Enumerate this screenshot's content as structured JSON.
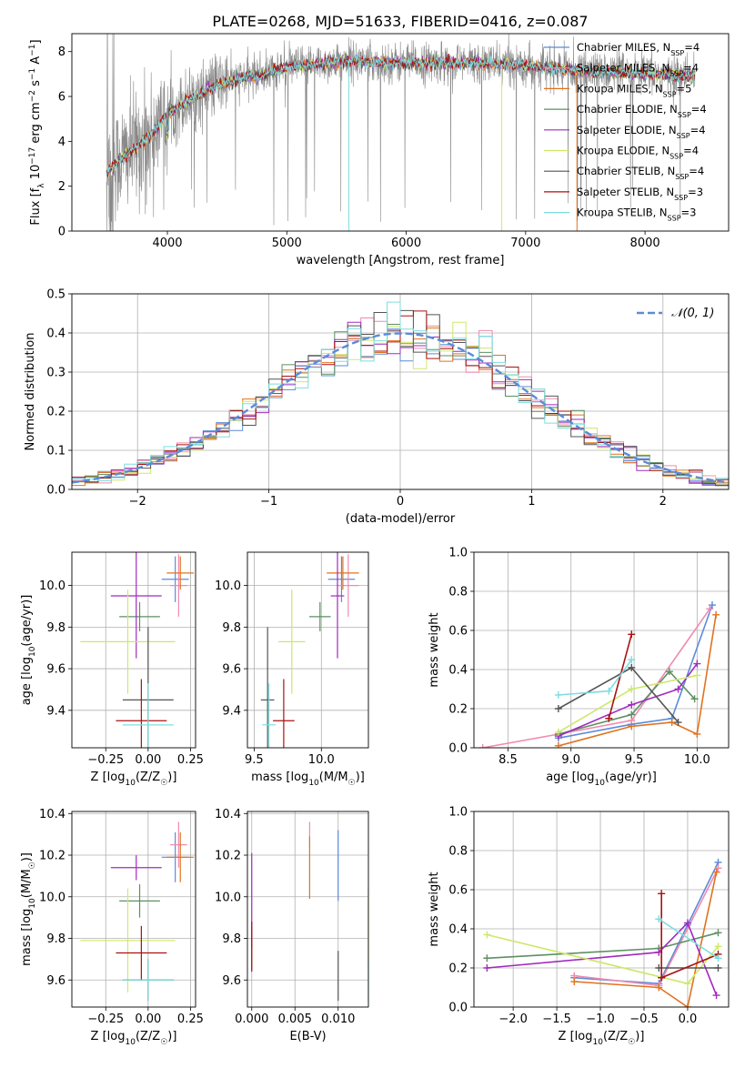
{
  "figure_title": "PLATE=0268, MJD=51633, FIBERID=0416, z=0.087",
  "colors": {
    "chabrier_miles": "#5b8bd9",
    "salpeter_miles": "#f08ab0",
    "kroupa_miles": "#e0731f",
    "chabrier_elodie": "#5e8f62",
    "salpeter_elodie": "#a02bbd",
    "kroupa_elodie": "#cde86a",
    "chabrier_stelib": "#555555",
    "salpeter_stelib": "#aa1111",
    "kroupa_stelib": "#7fdde0",
    "data": "#888888",
    "normal": "#5b8bd9"
  },
  "chart_data": [
    {
      "id": "spectrum",
      "type": "line",
      "xlabel": "wavelength [Angstrom, rest frame]",
      "ylabel": "Flux [f_λ 10^-17 erg cm^-2 s^-1 A^-1]",
      "xlim": [
        3200,
        8700
      ],
      "ylim": [
        0,
        8.8
      ],
      "xticks": [
        4000,
        5000,
        6000,
        7000,
        8000
      ],
      "yticks": [
        0,
        2,
        4,
        6,
        8
      ],
      "grid": false,
      "legend_position": "lower-right",
      "legend": [
        "Chabrier MILES, N_SSP=4",
        "Salpeter MILES, N_SSP=4",
        "Kroupa MILES, N_SSP=5",
        "Chabrier ELODIE, N_SSP=4",
        "Salpeter ELODIE, N_SSP=4",
        "Kroupa ELODIE, N_SSP=4",
        "Chabrier STELIB, N_SSP=4",
        "Salpeter STELIB, N_SSP=3",
        "Kroupa STELIB, N_SSP=3"
      ],
      "continuum": {
        "x": [
          3500,
          3600,
          3700,
          3800,
          3900,
          4000,
          4100,
          4200,
          4300,
          4400,
          4600,
          4800,
          5000,
          5200,
          5500,
          5800,
          6000,
          6300,
          6600,
          7000,
          7300,
          7600,
          8000,
          8400
        ],
        "y": [
          2.6,
          3.2,
          3.6,
          4.0,
          4.5,
          5.2,
          5.6,
          5.9,
          6.2,
          6.5,
          6.8,
          7.0,
          7.3,
          7.4,
          7.6,
          7.5,
          7.5,
          7.5,
          7.5,
          7.4,
          7.2,
          7.1,
          7.0,
          6.9
        ]
      },
      "features": [
        {
          "x": 5520,
          "y": 0,
          "model": "kroupa_stelib"
        },
        {
          "x": 6800,
          "y": 0,
          "model": "kroupa_elodie"
        },
        {
          "x": 7430,
          "y": 0,
          "model": "kroupa_miles"
        }
      ]
    },
    {
      "id": "residuals",
      "type": "histogram",
      "xlabel": "(data-model)/error",
      "ylabel": "Normed distribution",
      "xlim": [
        -2.5,
        2.5
      ],
      "ylim": [
        0,
        0.5
      ],
      "xticks": [
        -2,
        -1,
        0,
        1,
        2
      ],
      "yticks": [
        0.0,
        0.1,
        0.2,
        0.3,
        0.4,
        0.5
      ],
      "grid": true,
      "legend_position": "upper-right",
      "legend": [
        "𝒩(0, 1)"
      ],
      "bin_width": 0.1,
      "normal_mean": 0,
      "normal_sigma": 1
    },
    {
      "id": "age_vs_Z",
      "type": "errorbar",
      "xlabel": "Z [log10(Z/Z_☉)]",
      "ylabel": "age  [log10(age/yr)]",
      "xlim": [
        -0.45,
        0.28
      ],
      "ylim": [
        9.22,
        10.16
      ],
      "xticks": [
        -0.25,
        0.0,
        0.25
      ],
      "yticks": [
        9.4,
        9.6,
        9.8,
        10.0
      ],
      "grid": true,
      "points": [
        {
          "model": "chabrier_miles",
          "x": 0.16,
          "y": 10.03,
          "xerr": 0.08,
          "yerr": 0.11
        },
        {
          "model": "salpeter_miles",
          "x": 0.18,
          "y": 10.0,
          "xerr": 0.05,
          "yerr": 0.15
        },
        {
          "model": "kroupa_miles",
          "x": 0.19,
          "y": 10.06,
          "xerr": 0.08,
          "yerr": 0.08
        },
        {
          "model": "chabrier_elodie",
          "x": -0.05,
          "y": 9.85,
          "xerr": 0.12,
          "yerr": 0.07
        },
        {
          "model": "salpeter_elodie",
          "x": -0.07,
          "y": 9.95,
          "xerr": 0.15,
          "yerr": 0.3
        },
        {
          "model": "kroupa_elodie",
          "x": -0.12,
          "y": 9.73,
          "xerr": 0.28,
          "yerr": 0.25
        },
        {
          "model": "chabrier_stelib",
          "x": 0.0,
          "y": 9.45,
          "xerr": 0.15,
          "yerr": 0.35
        },
        {
          "model": "salpeter_stelib",
          "x": -0.04,
          "y": 9.35,
          "xerr": 0.15,
          "yerr": 0.2
        },
        {
          "model": "kroupa_stelib",
          "x": 0.0,
          "y": 9.33,
          "xerr": 0.15,
          "yerr": 0.2
        }
      ]
    },
    {
      "id": "age_vs_mass",
      "type": "errorbar",
      "xlabel": "mass [log10(M/M_☉)]",
      "ylabel": "",
      "xlim": [
        9.45,
        10.35
      ],
      "ylim": [
        9.22,
        10.16
      ],
      "xticks": [
        9.5,
        10.0
      ],
      "yticks": [
        9.4,
        9.6,
        9.8,
        10.0
      ],
      "grid": true,
      "points": [
        {
          "model": "chabrier_miles",
          "x": 10.15,
          "y": 10.03,
          "xerr": 0.1,
          "yerr": 0.11
        },
        {
          "model": "salpeter_miles",
          "x": 10.2,
          "y": 10.0,
          "xerr": 0.08,
          "yerr": 0.15
        },
        {
          "model": "kroupa_miles",
          "x": 10.16,
          "y": 10.06,
          "xerr": 0.12,
          "yerr": 0.08
        },
        {
          "model": "chabrier_elodie",
          "x": 9.99,
          "y": 9.85,
          "xerr": 0.08,
          "yerr": 0.07
        },
        {
          "model": "salpeter_elodie",
          "x": 10.12,
          "y": 9.95,
          "xerr": 0.05,
          "yerr": 0.3
        },
        {
          "model": "kroupa_elodie",
          "x": 9.78,
          "y": 9.73,
          "xerr": 0.1,
          "yerr": 0.25
        },
        {
          "model": "chabrier_stelib",
          "x": 9.6,
          "y": 9.45,
          "xerr": 0.05,
          "yerr": 0.35
        },
        {
          "model": "salpeter_stelib",
          "x": 9.72,
          "y": 9.35,
          "xerr": 0.08,
          "yerr": 0.2
        },
        {
          "model": "kroupa_stelib",
          "x": 9.61,
          "y": 9.33,
          "xerr": 0.05,
          "yerr": 0.2
        }
      ]
    },
    {
      "id": "weight_vs_age",
      "type": "line",
      "xlabel": "age  [log10(age/yr)]",
      "ylabel": "mass weight",
      "xlim": [
        8.23,
        10.25
      ],
      "ylim": [
        0,
        1.0
      ],
      "xticks": [
        8.5,
        9.0,
        9.5,
        10.0
      ],
      "yticks": [
        0.0,
        0.2,
        0.4,
        0.6,
        0.8,
        1.0
      ],
      "grid": true,
      "series": [
        {
          "model": "chabrier_miles",
          "x": [
            8.9,
            9.48,
            9.8,
            10.12
          ],
          "y": [
            0.05,
            0.12,
            0.15,
            0.73
          ]
        },
        {
          "model": "salpeter_miles",
          "x": [
            8.3,
            8.9,
            9.48,
            10.1
          ],
          "y": [
            0.0,
            0.07,
            0.14,
            0.71
          ]
        },
        {
          "model": "kroupa_miles",
          "x": [
            8.9,
            9.48,
            9.8,
            10.0,
            10.15
          ],
          "y": [
            0.01,
            0.11,
            0.13,
            0.07,
            0.68
          ]
        },
        {
          "model": "chabrier_elodie",
          "x": [
            8.9,
            9.48,
            9.78,
            9.98
          ],
          "y": [
            0.07,
            0.17,
            0.39,
            0.25
          ]
        },
        {
          "model": "salpeter_elodie",
          "x": [
            8.9,
            9.48,
            9.85,
            10.0
          ],
          "y": [
            0.06,
            0.22,
            0.3,
            0.43
          ]
        },
        {
          "model": "kroupa_elodie",
          "x": [
            8.9,
            9.48,
            10.0
          ],
          "y": [
            0.08,
            0.3,
            0.37
          ]
        },
        {
          "model": "chabrier_stelib",
          "x": [
            8.9,
            9.48,
            9.85
          ],
          "y": [
            0.2,
            0.41,
            0.13
          ]
        },
        {
          "model": "salpeter_stelib",
          "x": [
            9.3,
            9.48
          ],
          "y": [
            0.15,
            0.58
          ]
        },
        {
          "model": "kroupa_stelib",
          "x": [
            8.9,
            9.3,
            9.48
          ],
          "y": [
            0.27,
            0.29,
            0.45
          ]
        }
      ]
    },
    {
      "id": "mass_vs_Z",
      "type": "errorbar",
      "xlabel": "Z [log10(Z/Z_☉)]",
      "ylabel": "mass [log10(M/M_☉)]",
      "xlim": [
        -0.45,
        0.28
      ],
      "ylim": [
        9.47,
        10.41
      ],
      "xticks": [
        -0.25,
        0.0,
        0.25
      ],
      "yticks": [
        9.6,
        9.8,
        10.0,
        10.2,
        10.4
      ],
      "grid": true,
      "points": [
        {
          "model": "chabrier_miles",
          "x": 0.16,
          "y": 10.19,
          "xerr": 0.08,
          "yerr": 0.12
        },
        {
          "model": "salpeter_miles",
          "x": 0.18,
          "y": 10.25,
          "xerr": 0.05,
          "yerr": 0.11
        },
        {
          "model": "kroupa_miles",
          "x": 0.19,
          "y": 10.19,
          "xerr": 0.08,
          "yerr": 0.12
        },
        {
          "model": "chabrier_elodie",
          "x": -0.05,
          "y": 9.98,
          "xerr": 0.12,
          "yerr": 0.08
        },
        {
          "model": "salpeter_elodie",
          "x": -0.07,
          "y": 10.14,
          "xerr": 0.15,
          "yerr": 0.06
        },
        {
          "model": "kroupa_elodie",
          "x": -0.12,
          "y": 9.79,
          "xerr": 0.28,
          "yerr": 0.25
        },
        {
          "model": "chabrier_stelib",
          "x": 0.0,
          "y": 9.6,
          "xerr": 0.15,
          "yerr": 0.1
        },
        {
          "model": "salpeter_stelib",
          "x": -0.04,
          "y": 9.73,
          "xerr": 0.15,
          "yerr": 0.13
        },
        {
          "model": "kroupa_stelib",
          "x": 0.0,
          "y": 9.6,
          "xerr": 0.15,
          "yerr": 0.1
        }
      ]
    },
    {
      "id": "mass_vs_ebv",
      "type": "errorbar",
      "xlabel": "E(B-V)",
      "ylabel": "",
      "xlim": [
        -0.0005,
        0.0135
      ],
      "ylim": [
        9.47,
        10.41
      ],
      "xticks": [
        0.0,
        0.005,
        0.01
      ],
      "yticks": [
        9.6,
        9.8,
        10.0,
        10.2,
        10.4
      ],
      "grid": true,
      "points": [
        {
          "model": "chabrier_miles",
          "x": 0.01,
          "y": 10.15,
          "xerr": 0,
          "yerr": 0.17
        },
        {
          "model": "salpeter_miles",
          "x": 0.0067,
          "y": 10.3,
          "xerr": 0,
          "yerr": 0.06
        },
        {
          "model": "kroupa_miles",
          "x": 0.0067,
          "y": 10.14,
          "xerr": 0,
          "yerr": 0.15
        },
        {
          "model": "chabrier_elodie",
          "x": 0.0,
          "y": 9.75,
          "xerr": 0,
          "yerr": 0.1
        },
        {
          "model": "salpeter_elodie",
          "x": 0.0,
          "y": 9.98,
          "xerr": 0,
          "yerr": 0.23
        },
        {
          "model": "kroupa_elodie",
          "x": 0.0135,
          "y": 9.85,
          "xerr": 0,
          "yerr": 0.19
        },
        {
          "model": "chabrier_stelib",
          "x": 0.01,
          "y": 9.62,
          "xerr": 0,
          "yerr": 0.12
        },
        {
          "model": "salpeter_stelib",
          "x": 0.0,
          "y": 9.76,
          "xerr": 0,
          "yerr": 0.12
        },
        {
          "model": "kroupa_stelib",
          "x": 0.0135,
          "y": 9.6,
          "xerr": 0,
          "yerr": 0.1
        }
      ]
    },
    {
      "id": "weight_vs_Z",
      "type": "line",
      "xlabel": "Z [log10(Z/Z_☉)]",
      "ylabel": "mass weight",
      "xlim": [
        -2.45,
        0.47
      ],
      "ylim": [
        0,
        1.0
      ],
      "xticks": [
        -2.0,
        -1.5,
        -1.0,
        -0.5,
        0.0
      ],
      "yticks": [
        0.0,
        0.2,
        0.4,
        0.6,
        0.8,
        1.0
      ],
      "grid": true,
      "series": [
        {
          "model": "chabrier_miles",
          "x": [
            -1.3,
            -0.33,
            0.0,
            0.35
          ],
          "y": [
            0.15,
            0.12,
            0.42,
            0.74
          ]
        },
        {
          "model": "salpeter_miles",
          "x": [
            -1.3,
            -0.33,
            0.35
          ],
          "y": [
            0.16,
            0.11,
            0.71
          ]
        },
        {
          "model": "kroupa_miles",
          "x": [
            -1.3,
            -0.33,
            0.0,
            0.33
          ],
          "y": [
            0.13,
            0.1,
            0.0,
            0.69
          ]
        },
        {
          "model": "chabrier_elodie",
          "x": [
            -2.3,
            -0.33,
            0.35
          ],
          "y": [
            0.25,
            0.3,
            0.38
          ]
        },
        {
          "model": "salpeter_elodie",
          "x": [
            -2.3,
            -0.33,
            0.0,
            0.33
          ],
          "y": [
            0.2,
            0.28,
            0.43,
            0.06
          ]
        },
        {
          "model": "kroupa_elodie",
          "x": [
            -2.3,
            0.0,
            0.35
          ],
          "y": [
            0.37,
            0.12,
            0.31
          ]
        },
        {
          "model": "chabrier_stelib",
          "x": [
            -0.33,
            0.35
          ],
          "y": [
            0.2,
            0.2
          ]
        },
        {
          "model": "salpeter_stelib",
          "x": [
            -0.3,
            -0.3,
            0.35
          ],
          "y": [
            0.58,
            0.15,
            0.27
          ]
        },
        {
          "model": "kroupa_stelib",
          "x": [
            -0.33,
            0.35
          ],
          "y": [
            0.45,
            0.25
          ]
        }
      ]
    }
  ]
}
